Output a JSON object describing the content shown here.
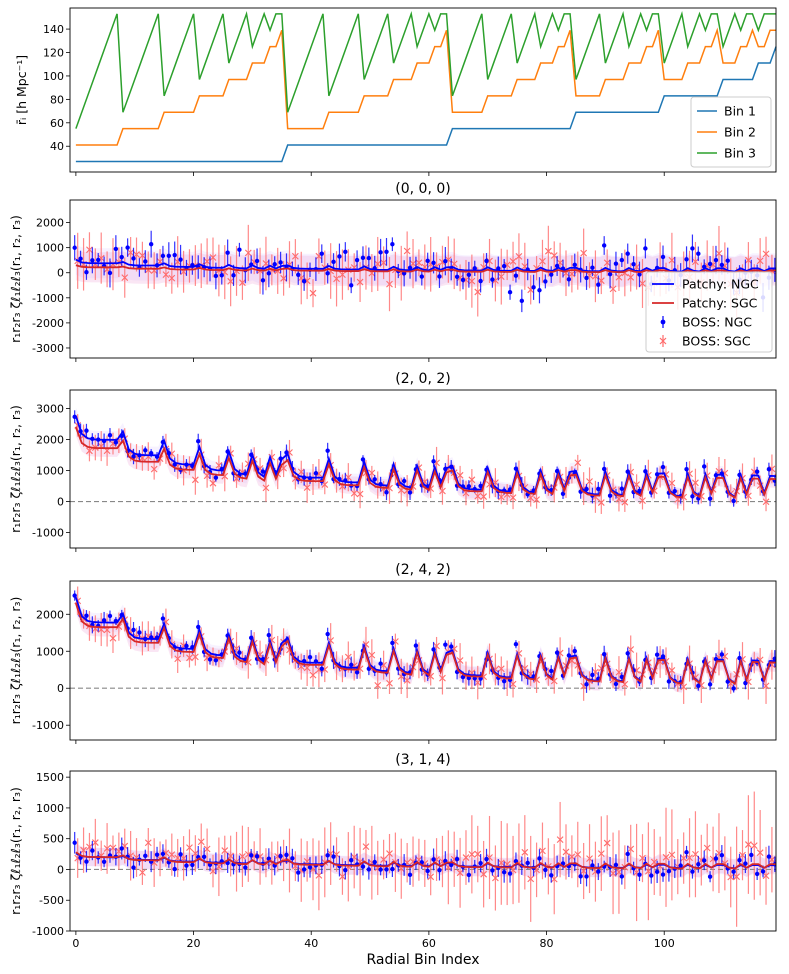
{
  "chart_data": {
    "type": "line",
    "xlabel": "Radial Bin Index",
    "xlim": [
      -1,
      119
    ],
    "xticks": [
      0,
      20,
      40,
      60,
      80,
      100
    ],
    "top": {
      "ylabel": "r̄ᵢ [h Mpc⁻¹]",
      "ylim": [
        18,
        158
      ],
      "yticks": [
        40,
        60,
        80,
        100,
        120,
        140
      ],
      "series": [
        {
          "name": "Bin 1",
          "color": "#1f77b4"
        },
        {
          "name": "Bin 2",
          "color": "#ff7f0e"
        },
        {
          "name": "Bin 3",
          "color": "#2ca02c"
        }
      ],
      "legend_position": "bottom-right"
    },
    "panels": [
      {
        "title": "(0, 0, 0)",
        "ylabel": "r₁r₂r₃ ζℓ₁ℓ₂ℓ₃(r₁, r₂, r₃)",
        "ylim": [
          -3400,
          2900
        ],
        "yticks": [
          -3000,
          -2000,
          -1000,
          0,
          1000,
          2000
        ],
        "legend": true,
        "legend_position": "right",
        "patchy_ngc_peak": 500,
        "patchy_sgc_peak": 300,
        "boss_ngc_peak": 600,
        "boss_sgc_peak": 400,
        "noise_ngc": 600,
        "noise_sgc": 700,
        "err_ngc": 450,
        "err_sgc": 800,
        "band": 600
      },
      {
        "title": "(2, 0, 2)",
        "ylabel": "r₁r₂r₃ ζℓ₁ℓ₂ℓ₃(r₁, r₂, r₃)",
        "ylim": [
          -1500,
          3600
        ],
        "yticks": [
          -1000,
          0,
          1000,
          2000,
          3000
        ],
        "legend": false,
        "patchy_ngc_peak": 2700,
        "patchy_sgc_peak": 2400,
        "boss_ngc_peak": 2800,
        "boss_sgc_peak": 2500,
        "noise_ngc": 200,
        "noise_sgc": 300,
        "err_ngc": 200,
        "err_sgc": 380,
        "band": 280
      },
      {
        "title": "(2, 4, 2)",
        "ylabel": "r₁r₂r₃ ζℓ₁ℓ₂ℓ₃(r₁, r₂, r₃)",
        "ylim": [
          -1400,
          2900
        ],
        "yticks": [
          -1000,
          0,
          1000,
          2000
        ],
        "legend": false,
        "patchy_ngc_peak": 2400,
        "patchy_sgc_peak": 2300,
        "boss_ngc_peak": 2450,
        "boss_sgc_peak": 2350,
        "noise_ngc": 180,
        "noise_sgc": 280,
        "err_ngc": 180,
        "err_sgc": 350,
        "band": 250
      },
      {
        "title": "(3, 1, 4)",
        "ylabel": "r₁r₂r₃ ζℓ₁ℓ₂ℓ₃(r₁, r₂, r₃)",
        "ylim": [
          -1000,
          1600
        ],
        "yticks": [
          -1000,
          -500,
          0,
          500,
          1000,
          1500
        ],
        "legend": false,
        "patchy_ngc_peak": 200,
        "patchy_sgc_peak": 280,
        "boss_ngc_peak": 300,
        "boss_sgc_peak": 400,
        "noise_ngc": 130,
        "noise_sgc": 220,
        "err_ngc": 140,
        "err_sgc": 280,
        "band": 150
      }
    ],
    "legend_entries": [
      {
        "label": "Patchy: NGC",
        "color": "#0000ff",
        "kind": "line"
      },
      {
        "label": "Patchy: SGC",
        "color": "#d62728",
        "kind": "line"
      },
      {
        "label": "BOSS: NGC",
        "color": "#0000ff",
        "kind": "errorbar-dot"
      },
      {
        "label": "BOSS: SGC",
        "color": "#ff6b6b",
        "kind": "errorbar-x"
      }
    ]
  }
}
